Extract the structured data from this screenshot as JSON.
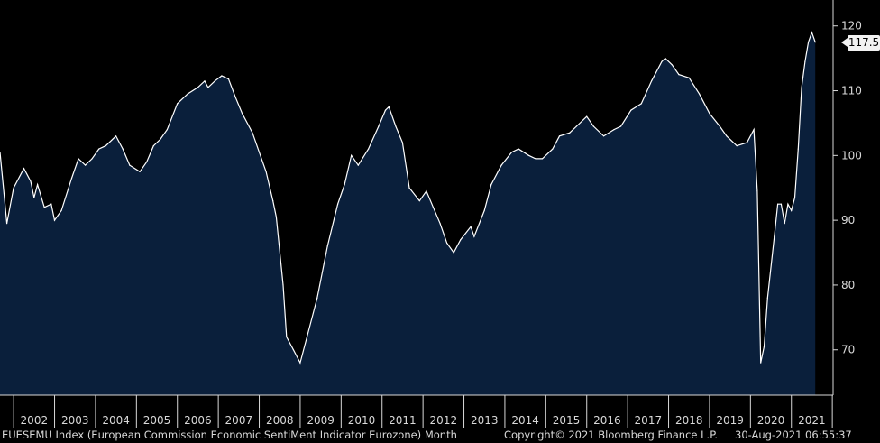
{
  "chart_data": {
    "type": "area",
    "series": [
      {
        "values": [
          {
            "x": "2001-09",
            "y": 100.5
          },
          {
            "x": "2001-11",
            "y": 89.5
          },
          {
            "x": "2002-01",
            "y": 95.0
          },
          {
            "x": "2002-04",
            "y": 98.0
          },
          {
            "x": "2002-06",
            "y": 96.0
          },
          {
            "x": "2002-07",
            "y": 93.5
          },
          {
            "x": "2002-08",
            "y": 95.5
          },
          {
            "x": "2002-10",
            "y": 92.0
          },
          {
            "x": "2002-12",
            "y": 92.5
          },
          {
            "x": "2003-01",
            "y": 90.0
          },
          {
            "x": "2003-03",
            "y": 91.5
          },
          {
            "x": "2003-06",
            "y": 96.5
          },
          {
            "x": "2003-08",
            "y": 99.5
          },
          {
            "x": "2003-10",
            "y": 98.5
          },
          {
            "x": "2003-12",
            "y": 99.5
          },
          {
            "x": "2004-02",
            "y": 101.0
          },
          {
            "x": "2004-04",
            "y": 101.5
          },
          {
            "x": "2004-07",
            "y": 103.0
          },
          {
            "x": "2004-09",
            "y": 101.0
          },
          {
            "x": "2004-11",
            "y": 98.5
          },
          {
            "x": "2005-02",
            "y": 97.5
          },
          {
            "x": "2005-04",
            "y": 99.0
          },
          {
            "x": "2005-06",
            "y": 101.5
          },
          {
            "x": "2005-08",
            "y": 102.5
          },
          {
            "x": "2005-10",
            "y": 104.0
          },
          {
            "x": "2006-01",
            "y": 108.0
          },
          {
            "x": "2006-04",
            "y": 109.5
          },
          {
            "x": "2006-07",
            "y": 110.5
          },
          {
            "x": "2006-09",
            "y": 111.5
          },
          {
            "x": "2006-10",
            "y": 110.5
          },
          {
            "x": "2006-12",
            "y": 111.5
          },
          {
            "x": "2007-02",
            "y": 112.3
          },
          {
            "x": "2007-04",
            "y": 111.8
          },
          {
            "x": "2007-06",
            "y": 109.0
          },
          {
            "x": "2007-08",
            "y": 106.5
          },
          {
            "x": "2007-11",
            "y": 103.5
          },
          {
            "x": "2008-01",
            "y": 100.5
          },
          {
            "x": "2008-03",
            "y": 97.5
          },
          {
            "x": "2008-05",
            "y": 93.0
          },
          {
            "x": "2008-06",
            "y": 90.5
          },
          {
            "x": "2008-08",
            "y": 80.0
          },
          {
            "x": "2008-09",
            "y": 72.0
          },
          {
            "x": "2008-11",
            "y": 70.0
          },
          {
            "x": "2009-01",
            "y": 68.0
          },
          {
            "x": "2009-03",
            "y": 72.0
          },
          {
            "x": "2009-06",
            "y": 78.0
          },
          {
            "x": "2009-09",
            "y": 86.0
          },
          {
            "x": "2009-12",
            "y": 92.5
          },
          {
            "x": "2010-02",
            "y": 95.5
          },
          {
            "x": "2010-04",
            "y": 100.0
          },
          {
            "x": "2010-06",
            "y": 98.5
          },
          {
            "x": "2010-09",
            "y": 101.0
          },
          {
            "x": "2010-12",
            "y": 104.5
          },
          {
            "x": "2011-02",
            "y": 107.0
          },
          {
            "x": "2011-03",
            "y": 107.5
          },
          {
            "x": "2011-05",
            "y": 104.5
          },
          {
            "x": "2011-07",
            "y": 102.0
          },
          {
            "x": "2011-09",
            "y": 95.0
          },
          {
            "x": "2011-12",
            "y": 93.0
          },
          {
            "x": "2012-02",
            "y": 94.5
          },
          {
            "x": "2012-04",
            "y": 92.0
          },
          {
            "x": "2012-06",
            "y": 89.5
          },
          {
            "x": "2012-08",
            "y": 86.5
          },
          {
            "x": "2012-10",
            "y": 85.0
          },
          {
            "x": "2012-12",
            "y": 87.0
          },
          {
            "x": "2013-03",
            "y": 89.0
          },
          {
            "x": "2013-04",
            "y": 87.5
          },
          {
            "x": "2013-07",
            "y": 91.5
          },
          {
            "x": "2013-09",
            "y": 95.5
          },
          {
            "x": "2013-12",
            "y": 98.5
          },
          {
            "x": "2014-03",
            "y": 100.5
          },
          {
            "x": "2014-05",
            "y": 101.0
          },
          {
            "x": "2014-08",
            "y": 100.0
          },
          {
            "x": "2014-10",
            "y": 99.5
          },
          {
            "x": "2014-12",
            "y": 99.5
          },
          {
            "x": "2015-03",
            "y": 101.0
          },
          {
            "x": "2015-05",
            "y": 103.0
          },
          {
            "x": "2015-08",
            "y": 103.5
          },
          {
            "x": "2015-10",
            "y": 104.5
          },
          {
            "x": "2016-01",
            "y": 106.0
          },
          {
            "x": "2016-03",
            "y": 104.5
          },
          {
            "x": "2016-06",
            "y": 103.0
          },
          {
            "x": "2016-09",
            "y": 104.0
          },
          {
            "x": "2016-11",
            "y": 104.5
          },
          {
            "x": "2017-02",
            "y": 107.0
          },
          {
            "x": "2017-05",
            "y": 108.0
          },
          {
            "x": "2017-08",
            "y": 111.5
          },
          {
            "x": "2017-11",
            "y": 114.5
          },
          {
            "x": "2017-12",
            "y": 115.0
          },
          {
            "x": "2018-02",
            "y": 114.0
          },
          {
            "x": "2018-04",
            "y": 112.5
          },
          {
            "x": "2018-07",
            "y": 112.0
          },
          {
            "x": "2018-10",
            "y": 109.5
          },
          {
            "x": "2019-01",
            "y": 106.5
          },
          {
            "x": "2019-04",
            "y": 104.5
          },
          {
            "x": "2019-06",
            "y": 103.0
          },
          {
            "x": "2019-09",
            "y": 101.5
          },
          {
            "x": "2019-12",
            "y": 102.0
          },
          {
            "x": "2020-02",
            "y": 104.0
          },
          {
            "x": "2020-03",
            "y": 94.5
          },
          {
            "x": "2020-04",
            "y": 68.0
          },
          {
            "x": "2020-05",
            "y": 70.5
          },
          {
            "x": "2020-06",
            "y": 78.0
          },
          {
            "x": "2020-08",
            "y": 87.5
          },
          {
            "x": "2020-09",
            "y": 92.5
          },
          {
            "x": "2020-10",
            "y": 92.5
          },
          {
            "x": "2020-11",
            "y": 89.5
          },
          {
            "x": "2020-12",
            "y": 92.5
          },
          {
            "x": "2021-01",
            "y": 91.5
          },
          {
            "x": "2021-02",
            "y": 93.5
          },
          {
            "x": "2021-03",
            "y": 101.0
          },
          {
            "x": "2021-04",
            "y": 110.5
          },
          {
            "x": "2021-05",
            "y": 114.5
          },
          {
            "x": "2021-06",
            "y": 117.5
          },
          {
            "x": "2021-07",
            "y": 119.0
          },
          {
            "x": "2021-08",
            "y": 117.5
          }
        ]
      }
    ],
    "x_ticks": [
      "2002",
      "2003",
      "2004",
      "2005",
      "2006",
      "2007",
      "2008",
      "2009",
      "2010",
      "2011",
      "2012",
      "2013",
      "2014",
      "2015",
      "2016",
      "2017",
      "2018",
      "2019",
      "2020",
      "2021"
    ],
    "y_ticks": [
      70,
      80,
      90,
      100,
      110,
      120
    ],
    "ylim": [
      63,
      124
    ],
    "last_value": "117.5",
    "grid": false,
    "colors": {
      "background": "#000000",
      "fill": "#0a1f3b",
      "line": "#ffffff",
      "axis": "#d9d9d9"
    }
  },
  "footer": {
    "ticker": "EUESEMU Index (European Commission Economic SentiMent Indicator Eurozone)  Month",
    "copyright": "Copyright© 2021 Bloomberg Finance L.P.",
    "timestamp": "30-Aug-2021 06:55:37"
  }
}
